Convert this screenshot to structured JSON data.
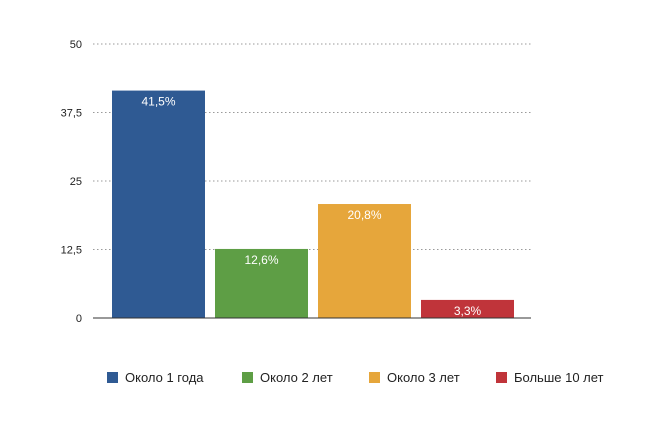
{
  "chart_data": {
    "type": "bar",
    "categories": [
      "Около 1 года",
      "Около 2 лет",
      "Около 3 лет",
      "Больше 10 лет"
    ],
    "values": [
      41.5,
      12.6,
      20.8,
      3.3
    ],
    "value_labels": [
      "41,5%",
      "12,6%",
      "20,8%",
      "3,3%"
    ],
    "colors": [
      "#2F5A93",
      "#5E9E45",
      "#E6A63B",
      "#C0343A"
    ],
    "title": "",
    "xlabel": "",
    "ylabel": "",
    "ylim": [
      0,
      50
    ],
    "yticks": [
      0,
      12.5,
      25,
      37.5,
      50
    ],
    "ytick_labels": [
      "0",
      "12,5",
      "25",
      "37,5",
      "50"
    ],
    "grid": true,
    "legend_position": "bottom"
  }
}
